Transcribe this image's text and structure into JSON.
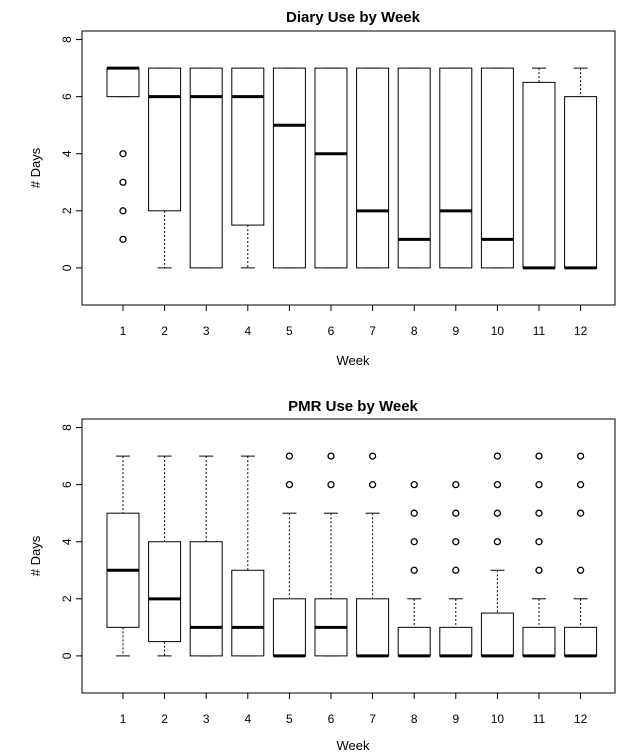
{
  "chart_data": [
    {
      "type": "boxplot",
      "title": "Diary Use by Week",
      "xlabel": "Week",
      "ylabel": "# Days",
      "ylim": [
        -1.3,
        8.3
      ],
      "yticks": [
        0,
        2,
        4,
        6,
        8
      ],
      "categories": [
        "1",
        "2",
        "3",
        "4",
        "5",
        "6",
        "7",
        "8",
        "9",
        "10",
        "11",
        "12"
      ],
      "boxes": [
        {
          "q1": 6,
          "median": 7,
          "q3": 7,
          "whisker_low": 6,
          "whisker_high": 7,
          "outliers": [
            4,
            3,
            2,
            1
          ]
        },
        {
          "q1": 2,
          "median": 6,
          "q3": 7,
          "whisker_low": 0,
          "whisker_high": 7,
          "outliers": []
        },
        {
          "q1": 0,
          "median": 6,
          "q3": 7,
          "whisker_low": 0,
          "whisker_high": 7,
          "outliers": []
        },
        {
          "q1": 1.5,
          "median": 6,
          "q3": 7,
          "whisker_low": 0,
          "whisker_high": 7,
          "outliers": []
        },
        {
          "q1": 0,
          "median": 5,
          "q3": 7,
          "whisker_low": 0,
          "whisker_high": 7,
          "outliers": []
        },
        {
          "q1": 0,
          "median": 4,
          "q3": 7,
          "whisker_low": 0,
          "whisker_high": 7,
          "outliers": []
        },
        {
          "q1": 0,
          "median": 2,
          "q3": 7,
          "whisker_low": 0,
          "whisker_high": 7,
          "outliers": []
        },
        {
          "q1": 0,
          "median": 1,
          "q3": 7,
          "whisker_low": 0,
          "whisker_high": 7,
          "outliers": []
        },
        {
          "q1": 0,
          "median": 2,
          "q3": 7,
          "whisker_low": 0,
          "whisker_high": 7,
          "outliers": []
        },
        {
          "q1": 0,
          "median": 1,
          "q3": 7,
          "whisker_low": 0,
          "whisker_high": 7,
          "outliers": []
        },
        {
          "q1": 0,
          "median": 0,
          "q3": 6.5,
          "whisker_low": 0,
          "whisker_high": 7,
          "outliers": []
        },
        {
          "q1": 0,
          "median": 0,
          "q3": 6,
          "whisker_low": 0,
          "whisker_high": 7,
          "outliers": []
        }
      ]
    },
    {
      "type": "boxplot",
      "title": "PMR Use by Week",
      "xlabel": "Week",
      "ylabel": "# Days",
      "ylim": [
        -1.3,
        8.3
      ],
      "yticks": [
        0,
        2,
        4,
        6,
        8
      ],
      "categories": [
        "1",
        "2",
        "3",
        "4",
        "5",
        "6",
        "7",
        "8",
        "9",
        "10",
        "11",
        "12"
      ],
      "boxes": [
        {
          "q1": 1,
          "median": 3,
          "q3": 5,
          "whisker_low": 0,
          "whisker_high": 7,
          "outliers": []
        },
        {
          "q1": 0.5,
          "median": 2,
          "q3": 4,
          "whisker_low": 0,
          "whisker_high": 7,
          "outliers": []
        },
        {
          "q1": 0,
          "median": 1,
          "q3": 4,
          "whisker_low": 0,
          "whisker_high": 7,
          "outliers": []
        },
        {
          "q1": 0,
          "median": 1,
          "q3": 3,
          "whisker_low": 0,
          "whisker_high": 7,
          "outliers": []
        },
        {
          "q1": 0,
          "median": 0,
          "q3": 2,
          "whisker_low": 0,
          "whisker_high": 5,
          "outliers": [
            6,
            7
          ]
        },
        {
          "q1": 0,
          "median": 1,
          "q3": 2,
          "whisker_low": 0,
          "whisker_high": 5,
          "outliers": [
            6,
            7
          ]
        },
        {
          "q1": 0,
          "median": 0,
          "q3": 2,
          "whisker_low": 0,
          "whisker_high": 5,
          "outliers": [
            6,
            7
          ]
        },
        {
          "q1": 0,
          "median": 0,
          "q3": 1,
          "whisker_low": 0,
          "whisker_high": 2,
          "outliers": [
            3,
            4,
            5,
            6
          ]
        },
        {
          "q1": 0,
          "median": 0,
          "q3": 1,
          "whisker_low": 0,
          "whisker_high": 2,
          "outliers": [
            3,
            4,
            5,
            6
          ]
        },
        {
          "q1": 0,
          "median": 0,
          "q3": 1.5,
          "whisker_low": 0,
          "whisker_high": 3,
          "outliers": [
            4,
            5,
            6,
            7
          ]
        },
        {
          "q1": 0,
          "median": 0,
          "q3": 1,
          "whisker_low": 0,
          "whisker_high": 2,
          "outliers": [
            3,
            4,
            5,
            6,
            7
          ]
        },
        {
          "q1": 0,
          "median": 0,
          "q3": 1,
          "whisker_low": 0,
          "whisker_high": 2,
          "outliers": [
            3,
            5,
            6,
            7
          ]
        }
      ]
    }
  ]
}
